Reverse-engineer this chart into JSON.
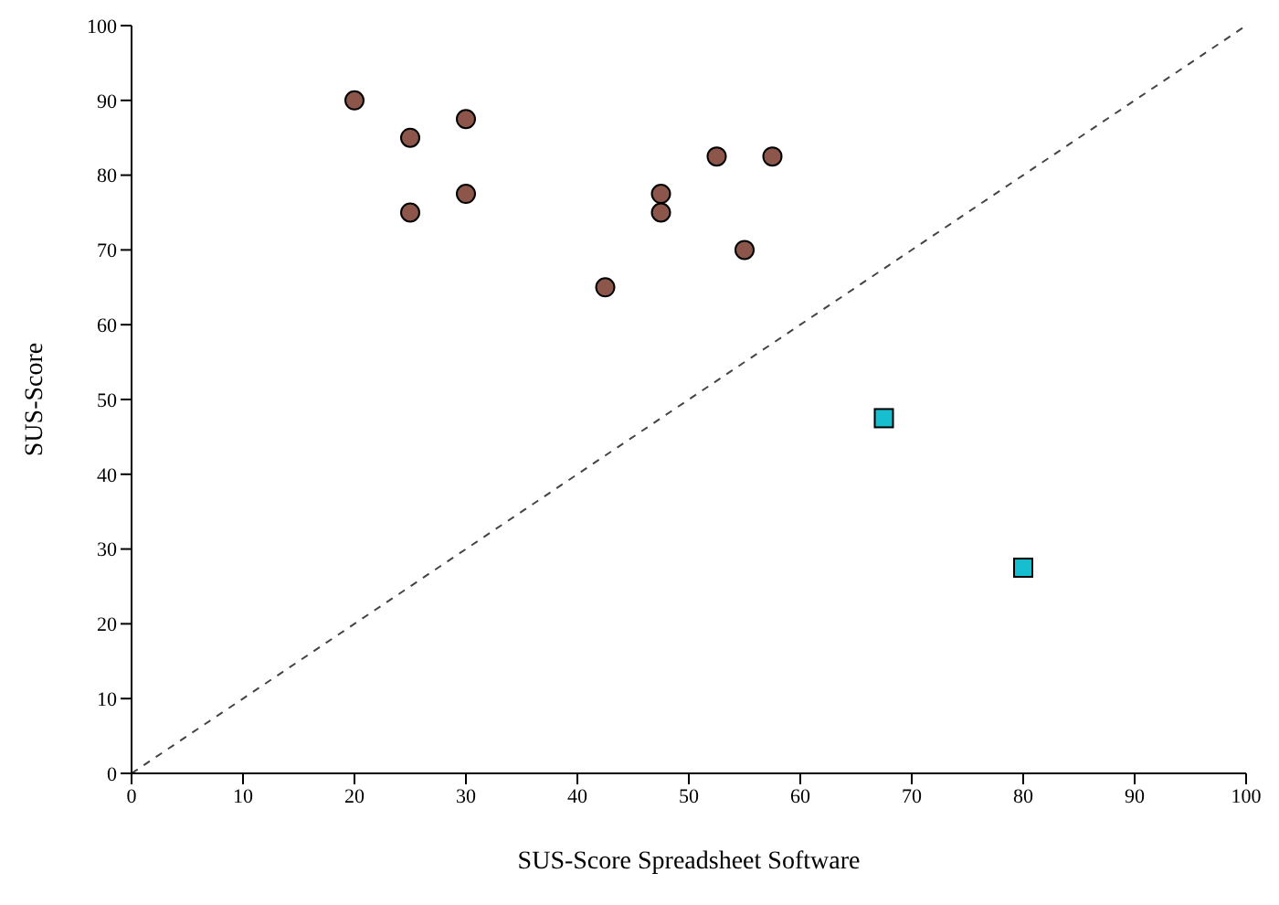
{
  "chart_data": {
    "type": "scatter",
    "xlabel": "SUS-Score Spreadsheet Software",
    "ylabel": "SUS-Score",
    "xlim": [
      0,
      100
    ],
    "ylim": [
      0,
      100
    ],
    "xticks": [
      0,
      10,
      20,
      30,
      40,
      50,
      60,
      70,
      80,
      90,
      100
    ],
    "yticks": [
      0,
      10,
      20,
      30,
      40,
      50,
      60,
      70,
      80,
      90,
      100
    ],
    "grid": false,
    "series": [
      {
        "color": "#8c564b",
        "marker": "circle",
        "x": [
          20,
          25,
          30,
          25,
          30,
          42.5,
          47.5,
          47.5,
          52.5,
          57.5,
          55
        ],
        "values": [
          90,
          85,
          87.5,
          75,
          77.5,
          65,
          77.5,
          75,
          82.5,
          82.5,
          70
        ]
      },
      {
        "color": "#17becf",
        "marker": "square",
        "x": [
          67.5,
          80
        ],
        "values": [
          47.5,
          27.5
        ]
      },
      {
        "type": "line",
        "color": "#444444",
        "marker": "none",
        "line_style": "dashed",
        "x": [
          0,
          100
        ],
        "values": [
          0,
          100
        ]
      }
    ]
  }
}
